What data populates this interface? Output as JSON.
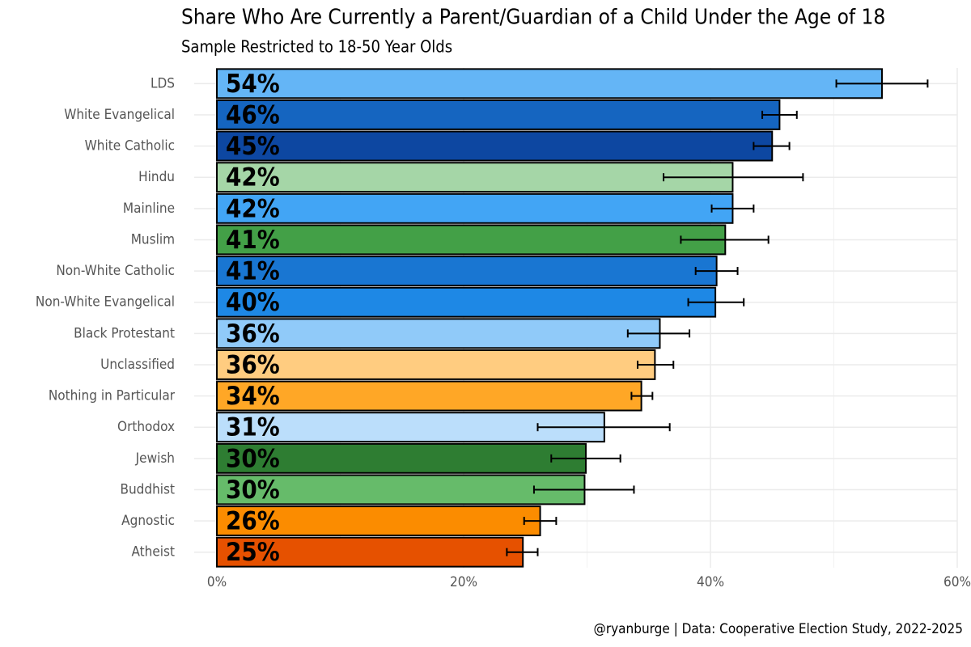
{
  "chart_data": {
    "type": "bar",
    "orientation": "horizontal",
    "title": "Share Who Are Currently a Parent/Guardian of a Child Under the Age of 18",
    "subtitle": "Sample Restricted to 18-50 Year Olds",
    "caption": "@ryanburge | Data: Cooperative Election Study, 2022-2025",
    "categories": [
      "LDS",
      "White Evangelical",
      "White Catholic",
      "Hindu",
      "Mainline",
      "Muslim",
      "Non-White Catholic",
      "Non-White Evangelical",
      "Black Protestant",
      "Unclassified",
      "Nothing in Particular",
      "Orthodox",
      "Jewish",
      "Buddhist",
      "Agnostic",
      "Atheist"
    ],
    "values": [
      53.9,
      45.6,
      45.0,
      41.8,
      41.8,
      41.2,
      40.5,
      40.4,
      35.9,
      35.5,
      34.4,
      31.4,
      29.9,
      29.8,
      26.2,
      24.8
    ],
    "value_labels": [
      "54%",
      "46%",
      "45%",
      "42%",
      "42%",
      "41%",
      "41%",
      "40%",
      "36%",
      "36%",
      "34%",
      "31%",
      "30%",
      "30%",
      "26%",
      "25%"
    ],
    "lower": [
      50.2,
      44.2,
      43.5,
      36.2,
      40.1,
      37.6,
      38.8,
      38.2,
      33.3,
      34.1,
      33.6,
      26.0,
      27.1,
      25.7,
      24.9,
      23.5
    ],
    "upper": [
      57.6,
      47.0,
      46.4,
      47.5,
      43.5,
      44.7,
      42.2,
      42.7,
      38.3,
      37.0,
      35.3,
      36.7,
      32.7,
      33.8,
      27.5,
      26.0
    ],
    "colors": [
      "#64b5f6",
      "#1565c0",
      "#0d47a1",
      "#a5d6a7",
      "#42a5f5",
      "#43a047",
      "#1976d2",
      "#1e88e5",
      "#90caf9",
      "#ffcc80",
      "#ffa726",
      "#bbdefb",
      "#2e7d32",
      "#66bb6a",
      "#fb8c00",
      "#e65100"
    ],
    "xlim": [
      0,
      60
    ],
    "xticks": [
      {
        "value": 0,
        "label": "0%"
      },
      {
        "value": 20,
        "label": "20%"
      },
      {
        "value": 40,
        "label": "40%"
      },
      {
        "value": 60,
        "label": "60%"
      }
    ],
    "minor_xticks": [
      10,
      30,
      50
    ],
    "grid": true
  }
}
